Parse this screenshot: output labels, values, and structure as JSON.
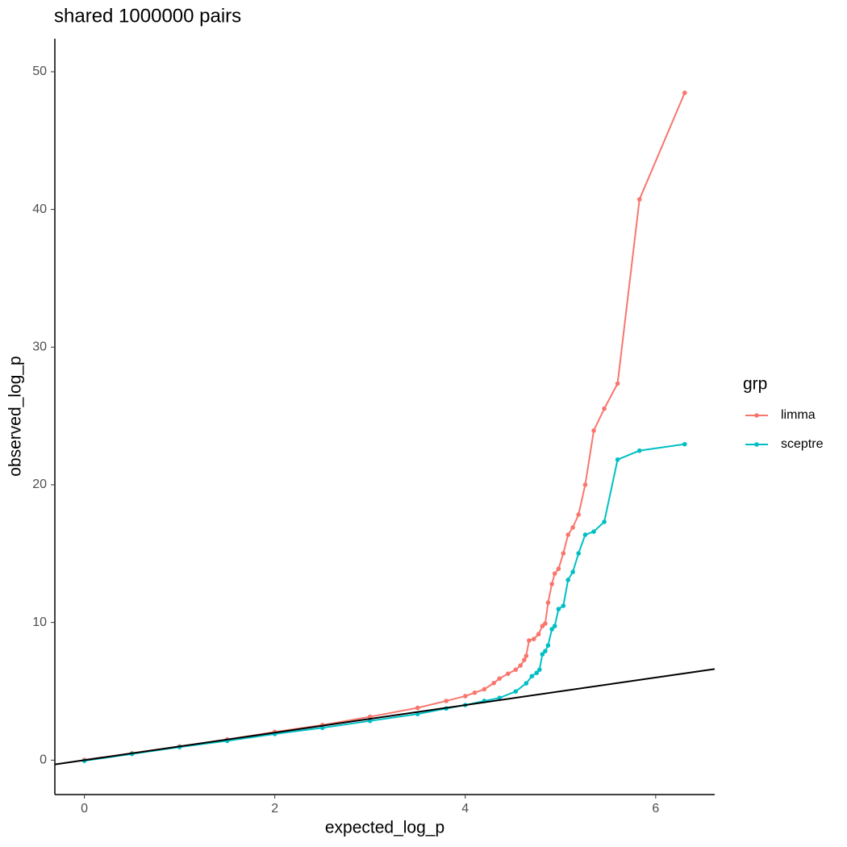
{
  "chart_data": {
    "type": "line",
    "title": "shared 1000000 pairs",
    "x_label": "expected_log_p",
    "y_label": "observed_log_p",
    "legend_title": "grp",
    "legend_position": "right",
    "grid": false,
    "xlim": [
      -0.31,
      6.62
    ],
    "ylim": [
      -2.5,
      52.4
    ],
    "xticks": [
      0,
      2,
      4,
      6
    ],
    "yticks": [
      0,
      10,
      20,
      30,
      40,
      50
    ],
    "abline": {
      "slope": 1,
      "intercept": 0,
      "color": "#000000"
    },
    "series": [
      {
        "name": "limma",
        "color": "#F8766D",
        "x": [
          0.0,
          0.5,
          1.0,
          1.5,
          2.0,
          2.5,
          3.0,
          3.5,
          3.8,
          4.0,
          4.1,
          4.2,
          4.3,
          4.36,
          4.45,
          4.53,
          4.58,
          4.62,
          4.64,
          4.67,
          4.72,
          4.77,
          4.81,
          4.84,
          4.87,
          4.91,
          4.94,
          4.98,
          5.03,
          5.08,
          5.13,
          5.19,
          5.26,
          5.35,
          5.46,
          5.6,
          5.83,
          6.305
        ],
        "values": [
          0.02,
          0.5,
          1.0,
          1.5,
          2.05,
          2.55,
          3.15,
          3.8,
          4.3,
          4.65,
          4.9,
          5.15,
          5.6,
          5.93,
          6.28,
          6.57,
          6.87,
          7.28,
          7.57,
          8.69,
          8.8,
          9.15,
          9.74,
          9.92,
          11.44,
          12.79,
          13.55,
          13.9,
          15.02,
          16.37,
          16.9,
          17.84,
          20.0,
          23.94,
          25.53,
          27.35,
          40.73,
          48.47
        ]
      },
      {
        "name": "sceptre",
        "color": "#00BFC4",
        "x": [
          0.0,
          0.5,
          1.0,
          1.5,
          2.0,
          2.5,
          3.0,
          3.5,
          3.8,
          4.0,
          4.2,
          4.36,
          4.53,
          4.64,
          4.7,
          4.75,
          4.78,
          4.81,
          4.84,
          4.87,
          4.91,
          4.94,
          4.98,
          5.03,
          5.08,
          5.13,
          5.19,
          5.26,
          5.35,
          5.46,
          5.6,
          5.83,
          6.305
        ],
        "values": [
          -0.05,
          0.45,
          0.95,
          1.4,
          1.9,
          2.35,
          2.85,
          3.35,
          3.75,
          4.0,
          4.3,
          4.52,
          4.99,
          5.58,
          6.1,
          6.34,
          6.57,
          7.69,
          7.92,
          8.33,
          9.51,
          9.74,
          10.97,
          11.21,
          13.09,
          13.67,
          15.02,
          16.37,
          16.6,
          17.31,
          21.83,
          22.48,
          22.95
        ]
      }
    ]
  }
}
